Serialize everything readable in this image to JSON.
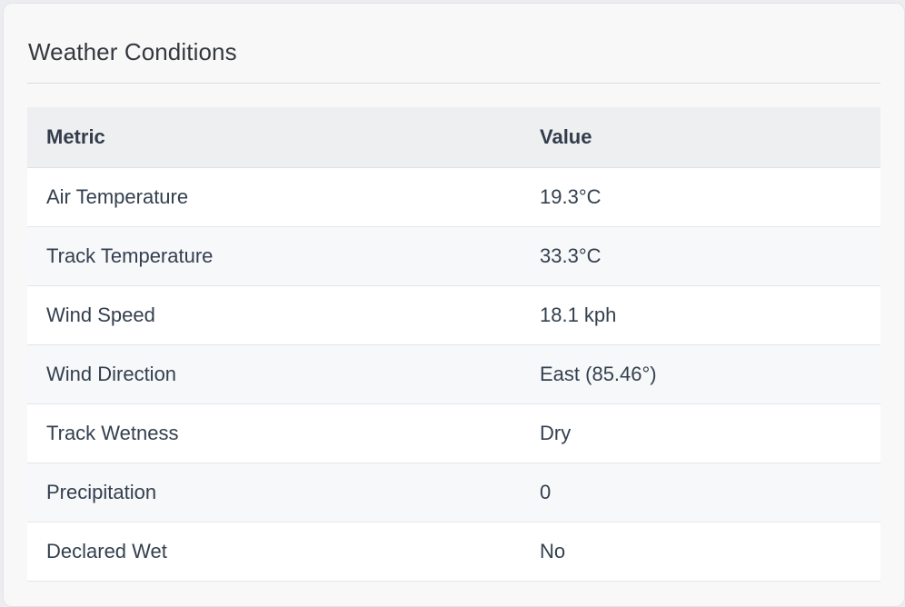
{
  "card": {
    "title": "Weather Conditions"
  },
  "table": {
    "headers": {
      "metric": "Metric",
      "value": "Value"
    },
    "rows": [
      {
        "metric": "Air Temperature",
        "value": "19.3°C"
      },
      {
        "metric": "Track Temperature",
        "value": "33.3°C"
      },
      {
        "metric": "Wind Speed",
        "value": "18.1 kph"
      },
      {
        "metric": "Wind Direction",
        "value": "East (85.46°)"
      },
      {
        "metric": "Track Wetness",
        "value": "Dry"
      },
      {
        "metric": "Precipitation",
        "value": "0"
      },
      {
        "metric": "Declared Wet",
        "value": "No"
      }
    ]
  }
}
